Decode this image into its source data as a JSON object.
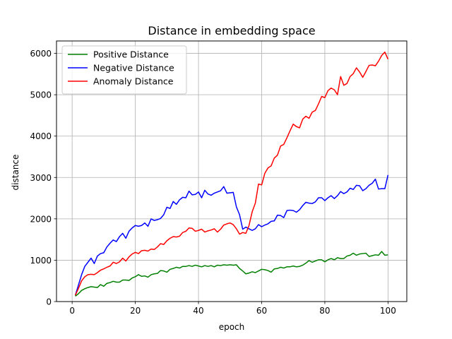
{
  "chart_data": {
    "type": "line",
    "title": "Distance in embedding space",
    "xlabel": "epoch",
    "ylabel": "distance",
    "xlim": [
      -4.95,
      105.95
    ],
    "ylim": [
      0,
      6300
    ],
    "xticks": [
      0,
      20,
      40,
      60,
      80,
      100
    ],
    "yticks": [
      0,
      1000,
      2000,
      3000,
      4000,
      5000,
      6000
    ],
    "grid": true,
    "legend_position": "top-left",
    "x": [
      1,
      2,
      3,
      4,
      5,
      6,
      7,
      8,
      9,
      10,
      11,
      12,
      13,
      14,
      15,
      16,
      17,
      18,
      19,
      20,
      21,
      22,
      23,
      24,
      25,
      26,
      27,
      28,
      29,
      30,
      31,
      32,
      33,
      34,
      35,
      36,
      37,
      38,
      39,
      40,
      41,
      42,
      43,
      44,
      45,
      46,
      47,
      48,
      49,
      50,
      51,
      52,
      53,
      54,
      55,
      56,
      57,
      58,
      59,
      60,
      61,
      62,
      63,
      64,
      65,
      66,
      67,
      68,
      69,
      70,
      71,
      72,
      73,
      74,
      75,
      76,
      77,
      78,
      79,
      80,
      81,
      82,
      83,
      84,
      85,
      86,
      87,
      88,
      89,
      90,
      91,
      92,
      93,
      94,
      95,
      96,
      97,
      98,
      99,
      100
    ],
    "series": [
      {
        "name": "Positive Distance",
        "color": "#008000",
        "values": [
          130,
          190,
          270,
          310,
          340,
          360,
          350,
          340,
          410,
          370,
          440,
          460,
          490,
          470,
          470,
          520,
          520,
          510,
          570,
          600,
          650,
          610,
          620,
          590,
          650,
          670,
          680,
          750,
          740,
          710,
          780,
          800,
          830,
          810,
          850,
          850,
          870,
          850,
          880,
          860,
          840,
          870,
          850,
          870,
          840,
          880,
          870,
          890,
          880,
          890,
          880,
          890,
          800,
          740,
          670,
          690,
          720,
          700,
          740,
          780,
          770,
          750,
          710,
          790,
          800,
          830,
          810,
          840,
          840,
          860,
          840,
          850,
          880,
          930,
          990,
          950,
          980,
          1010,
          1010,
          960,
          1010,
          1040,
          1010,
          1060,
          1040,
          1040,
          1100,
          1120,
          1170,
          1120,
          1150,
          1160,
          1170,
          1090,
          1110,
          1130,
          1120,
          1210,
          1120,
          1130
        ]
      },
      {
        "name": "Negative Distance",
        "color": "#0000ff",
        "values": [
          150,
          400,
          650,
          850,
          950,
          1050,
          920,
          1100,
          1160,
          1180,
          1320,
          1410,
          1490,
          1450,
          1570,
          1650,
          1530,
          1700,
          1780,
          1840,
          1820,
          1840,
          1900,
          1820,
          2000,
          1960,
          1980,
          2010,
          2100,
          2280,
          2250,
          2420,
          2350,
          2460,
          2520,
          2510,
          2670,
          2580,
          2590,
          2650,
          2510,
          2690,
          2600,
          2570,
          2620,
          2650,
          2680,
          2780,
          2620,
          2630,
          2640,
          2290,
          2100,
          1750,
          1800,
          1760,
          1720,
          1760,
          1860,
          1810,
          1850,
          1880,
          1940,
          1950,
          2090,
          2080,
          2030,
          2200,
          2210,
          2200,
          2160,
          2220,
          2320,
          2400,
          2380,
          2370,
          2410,
          2510,
          2510,
          2440,
          2510,
          2560,
          2490,
          2560,
          2660,
          2610,
          2650,
          2740,
          2710,
          2810,
          2800,
          2680,
          2730,
          2810,
          2860,
          2960,
          2720,
          2730,
          2730,
          3060
        ]
      },
      {
        "name": "Anomaly Distance",
        "color": "#ff0000",
        "values": [
          150,
          320,
          500,
          600,
          650,
          660,
          650,
          700,
          760,
          790,
          830,
          860,
          950,
          920,
          960,
          1050,
          980,
          1080,
          1150,
          1190,
          1160,
          1230,
          1240,
          1220,
          1270,
          1260,
          1320,
          1400,
          1380,
          1470,
          1530,
          1570,
          1560,
          1580,
          1670,
          1700,
          1780,
          1770,
          1700,
          1720,
          1750,
          1680,
          1710,
          1730,
          1760,
          1680,
          1750,
          1850,
          1880,
          1900,
          1860,
          1760,
          1630,
          1670,
          1650,
          1840,
          2170,
          2380,
          2840,
          2820,
          3100,
          3230,
          3280,
          3470,
          3540,
          3760,
          3800,
          3960,
          4130,
          4290,
          4230,
          4200,
          4410,
          4480,
          4430,
          4580,
          4620,
          4780,
          4960,
          4930,
          5100,
          5160,
          5120,
          5000,
          5440,
          5230,
          5270,
          5440,
          5510,
          5650,
          5550,
          5420,
          5560,
          5710,
          5720,
          5700,
          5810,
          5950,
          6030,
          5860
        ]
      }
    ]
  }
}
